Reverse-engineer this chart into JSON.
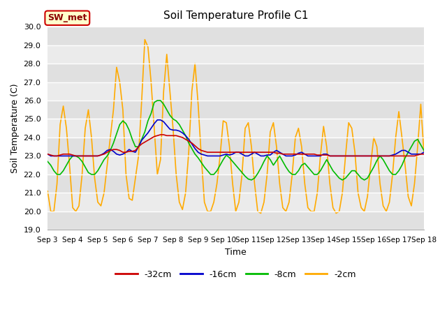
{
  "title": "Soil Temperature Profile C1",
  "xlabel": "Time",
  "ylabel": "Soil Temperature (C)",
  "ylim": [
    19.0,
    30.0
  ],
  "yticks": [
    19.0,
    20.0,
    21.0,
    22.0,
    23.0,
    24.0,
    25.0,
    26.0,
    27.0,
    28.0,
    29.0,
    30.0
  ],
  "x_labels": [
    "Sep 3",
    "Sep 4",
    "Sep 5",
    "Sep 6",
    "Sep 7",
    "Sep 8",
    "Sep 9",
    "Sep 10",
    "Sep 11",
    "Sep 12",
    "Sep 13",
    "Sep 14",
    "Sep 15",
    "Sep 16",
    "Sep 17",
    "Sep 18"
  ],
  "colors": {
    "-32cm": "#cc0000",
    "-16cm": "#0000cc",
    "-8cm": "#00bb00",
    "-2cm": "#ffaa00"
  },
  "band_colors": [
    "#e0e0e0",
    "#ebebeb"
  ],
  "legend_label": "SW_met",
  "legend_box_facecolor": "#ffffcc",
  "legend_box_edgecolor": "#cc0000",
  "legend_text_color": "#8b0000",
  "background_color": "#e0e0e0",
  "data": {
    "x_days": [
      3,
      3.125,
      3.25,
      3.375,
      3.5,
      3.625,
      3.75,
      3.875,
      4,
      4.125,
      4.25,
      4.375,
      4.5,
      4.625,
      4.75,
      4.875,
      5,
      5.125,
      5.25,
      5.375,
      5.5,
      5.625,
      5.75,
      5.875,
      6,
      6.125,
      6.25,
      6.375,
      6.5,
      6.625,
      6.75,
      6.875,
      7,
      7.125,
      7.25,
      7.375,
      7.5,
      7.625,
      7.75,
      7.875,
      8,
      8.125,
      8.25,
      8.375,
      8.5,
      8.625,
      8.75,
      8.875,
      9,
      9.125,
      9.25,
      9.375,
      9.5,
      9.625,
      9.75,
      9.875,
      10,
      10.125,
      10.25,
      10.375,
      10.5,
      10.625,
      10.75,
      10.875,
      11,
      11.125,
      11.25,
      11.375,
      11.5,
      11.625,
      11.75,
      11.875,
      12,
      12.125,
      12.25,
      12.375,
      12.5,
      12.625,
      12.75,
      12.875,
      13,
      13.125,
      13.25,
      13.375,
      13.5,
      13.625,
      13.75,
      13.875,
      14,
      14.125,
      14.25,
      14.375,
      14.5,
      14.625,
      14.75,
      14.875,
      15,
      15.125,
      15.25,
      15.375,
      15.5,
      15.625,
      15.75,
      15.875,
      16,
      16.125,
      16.25,
      16.375,
      16.5,
      16.625,
      16.75,
      16.875,
      17,
      17.125,
      17.25,
      17.375,
      17.5,
      17.625,
      17.75,
      17.875,
      18
    ],
    "d32": [
      23.1,
      23.05,
      23.0,
      23.0,
      23.05,
      23.1,
      23.1,
      23.1,
      23.05,
      23.0,
      23.0,
      23.0,
      23.0,
      23.0,
      23.0,
      23.0,
      23.0,
      23.05,
      23.1,
      23.2,
      23.3,
      23.35,
      23.35,
      23.3,
      23.2,
      23.2,
      23.25,
      23.25,
      23.3,
      23.5,
      23.65,
      23.75,
      23.85,
      23.95,
      24.05,
      24.1,
      24.15,
      24.15,
      24.1,
      24.1,
      24.1,
      24.1,
      24.05,
      24.0,
      23.9,
      23.8,
      23.7,
      23.55,
      23.4,
      23.3,
      23.25,
      23.2,
      23.2,
      23.2,
      23.2,
      23.2,
      23.2,
      23.2,
      23.2,
      23.2,
      23.2,
      23.2,
      23.2,
      23.2,
      23.2,
      23.2,
      23.2,
      23.2,
      23.2,
      23.2,
      23.2,
      23.2,
      23.2,
      23.15,
      23.15,
      23.1,
      23.1,
      23.1,
      23.1,
      23.1,
      23.1,
      23.1,
      23.1,
      23.1,
      23.1,
      23.1,
      23.05,
      23.05,
      23.05,
      23.05,
      23.0,
      23.0,
      23.0,
      23.0,
      23.0,
      23.0,
      23.0,
      23.0,
      23.0,
      23.0,
      23.0,
      23.0,
      23.0,
      23.0,
      23.0,
      23.0,
      23.0,
      23.0,
      23.0,
      23.0,
      23.0,
      23.0,
      23.0,
      23.0,
      23.0,
      23.0,
      23.0,
      23.0,
      23.05,
      23.1,
      23.1
    ],
    "d16": [
      23.1,
      23.0,
      23.0,
      23.0,
      23.0,
      23.0,
      23.0,
      23.0,
      23.0,
      23.0,
      23.0,
      23.0,
      23.0,
      23.0,
      23.0,
      23.0,
      23.0,
      23.05,
      23.15,
      23.3,
      23.35,
      23.25,
      23.1,
      23.05,
      23.1,
      23.2,
      23.35,
      23.25,
      23.2,
      23.5,
      23.85,
      24.05,
      24.25,
      24.5,
      24.75,
      24.95,
      24.95,
      24.85,
      24.65,
      24.45,
      24.4,
      24.4,
      24.35,
      24.25,
      24.1,
      23.9,
      23.65,
      23.4,
      23.2,
      23.1,
      23.05,
      23.0,
      23.0,
      23.0,
      23.0,
      23.0,
      23.05,
      23.1,
      23.05,
      23.1,
      23.2,
      23.2,
      23.1,
      23.0,
      23.0,
      23.1,
      23.2,
      23.1,
      23.0,
      23.0,
      23.05,
      23.05,
      23.2,
      23.3,
      23.2,
      23.1,
      23.0,
      23.0,
      23.0,
      23.05,
      23.15,
      23.2,
      23.1,
      23.0,
      23.0,
      23.0,
      23.0,
      23.0,
      23.1,
      23.1,
      23.0,
      23.0,
      23.0,
      23.0,
      23.0,
      23.0,
      23.0,
      23.0,
      23.0,
      23.0,
      23.0,
      23.0,
      23.0,
      23.0,
      23.0,
      23.0,
      23.0,
      23.0,
      23.0,
      23.0,
      23.05,
      23.1,
      23.2,
      23.3,
      23.3,
      23.2,
      23.1,
      23.1,
      23.1,
      23.1,
      23.2
    ],
    "d8": [
      22.7,
      22.5,
      22.2,
      22.0,
      22.0,
      22.2,
      22.5,
      22.8,
      23.0,
      23.0,
      22.9,
      22.7,
      22.4,
      22.1,
      22.0,
      22.0,
      22.2,
      22.5,
      22.8,
      23.0,
      23.3,
      23.7,
      24.2,
      24.7,
      24.9,
      24.75,
      24.4,
      23.9,
      23.5,
      23.5,
      23.9,
      24.3,
      24.9,
      25.3,
      25.9,
      26.0,
      26.0,
      25.8,
      25.5,
      25.2,
      25.0,
      24.9,
      24.7,
      24.4,
      24.1,
      23.7,
      23.4,
      23.1,
      22.9,
      22.65,
      22.4,
      22.2,
      22.0,
      22.0,
      22.2,
      22.5,
      22.8,
      23.05,
      22.9,
      22.7,
      22.5,
      22.3,
      22.1,
      21.9,
      21.75,
      21.7,
      21.8,
      22.05,
      22.35,
      22.7,
      23.0,
      22.8,
      22.5,
      22.75,
      23.0,
      22.7,
      22.4,
      22.15,
      22.0,
      22.0,
      22.2,
      22.5,
      22.6,
      22.4,
      22.2,
      22.0,
      22.0,
      22.2,
      22.5,
      22.8,
      22.5,
      22.2,
      22.0,
      21.8,
      21.7,
      21.8,
      22.0,
      22.2,
      22.2,
      22.0,
      21.8,
      21.7,
      21.8,
      22.1,
      22.4,
      22.75,
      23.0,
      22.8,
      22.5,
      22.2,
      22.0,
      22.0,
      22.2,
      22.5,
      22.9,
      23.2,
      23.5,
      23.8,
      23.9,
      23.6,
      23.3
    ],
    "d2": [
      21.1,
      20.0,
      20.0,
      21.5,
      24.7,
      25.7,
      24.5,
      22.5,
      20.2,
      20.0,
      20.3,
      22.0,
      24.5,
      25.5,
      24.0,
      21.8,
      20.5,
      20.3,
      21.0,
      22.5,
      24.0,
      25.5,
      27.8,
      27.0,
      25.5,
      22.0,
      20.7,
      20.6,
      21.8,
      23.0,
      26.0,
      29.3,
      28.9,
      27.0,
      24.5,
      22.0,
      22.8,
      26.5,
      28.5,
      26.5,
      24.5,
      22.0,
      20.5,
      20.1,
      21.0,
      23.2,
      26.5,
      28.0,
      25.8,
      23.0,
      20.5,
      20.0,
      20.0,
      20.5,
      21.5,
      23.0,
      24.9,
      24.8,
      23.5,
      21.5,
      20.0,
      20.5,
      22.0,
      24.5,
      24.8,
      23.5,
      21.5,
      20.0,
      19.9,
      20.5,
      22.0,
      24.3,
      24.8,
      23.5,
      21.5,
      20.2,
      20.0,
      20.5,
      22.0,
      24.0,
      24.5,
      23.5,
      21.5,
      20.2,
      20.0,
      20.0,
      21.0,
      23.0,
      24.6,
      23.5,
      21.5,
      20.2,
      19.9,
      20.0,
      21.0,
      23.0,
      24.8,
      24.5,
      23.2,
      21.0,
      20.2,
      20.0,
      20.8,
      22.5,
      24.0,
      23.5,
      21.5,
      20.3,
      20.0,
      20.5,
      22.0,
      24.0,
      25.4,
      24.0,
      22.5,
      20.8,
      20.3,
      21.5,
      23.5,
      25.8,
      23.2
    ]
  }
}
